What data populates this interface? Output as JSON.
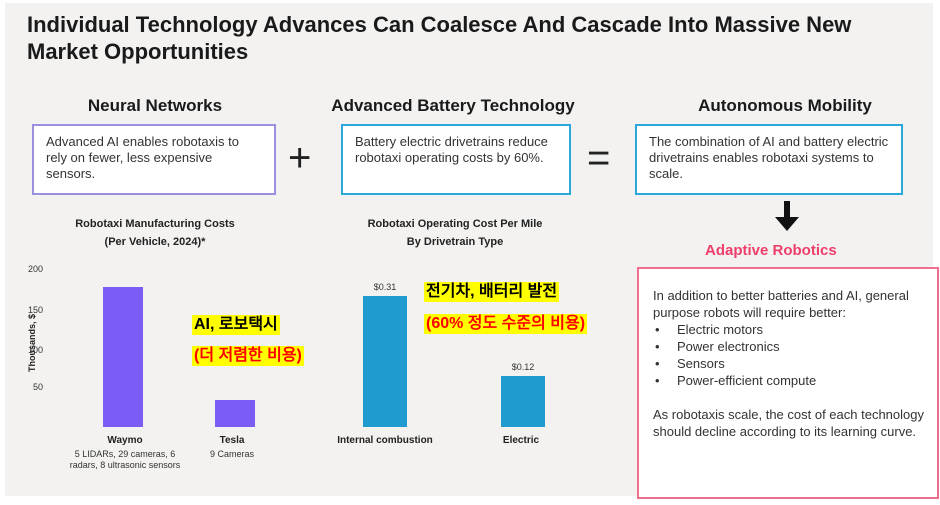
{
  "title": "Individual Technology Advances Can Coalesce And Cascade Into Massive New Market Opportunities",
  "columns": [
    {
      "heading": "Neural Networks",
      "text": "Advanced AI enables robotaxis to rely on fewer, less expensive sensors.",
      "border_color": "#9b8fe0"
    },
    {
      "heading": "Advanced Battery Technology",
      "text": "Battery electric drivetrains reduce robotaxi operating costs by 60%.",
      "border_color": "#2ca8d8"
    },
    {
      "heading": "Autonomous Mobility",
      "text": "The combination of AI and battery electric drivetrains enables robotaxi systems to scale.",
      "border_color": "#2ca8d8"
    }
  ],
  "operators": {
    "plus": "+",
    "equals": "="
  },
  "arrow_icon": "down-arrow-icon",
  "adaptive_robotics": {
    "title": "Adaptive Robotics",
    "intro": "In addition to better batteries and AI, general purpose robots will require better:",
    "items": [
      "Electric motors",
      "Power electronics",
      "Sensors",
      "Power-efficient compute"
    ],
    "outro": "As robotaxis scale, the cost of each technology should decline according to its learning curve."
  },
  "annotations": {
    "chart1_line1": "AI, 로보택시",
    "chart1_line2": "(더 저렴한 비용)",
    "chart2_line1": "전기차, 배터리 발전",
    "chart2_line2": "(60% 정도 수준의 비용)"
  },
  "chart_data": [
    {
      "type": "bar",
      "title": "Robotaxi Manufacturing Costs",
      "subtitle": "(Per Vehicle, 2024)*",
      "ylabel": "Thousands, $",
      "ylim": [
        0,
        200
      ],
      "yticks": [
        "200",
        "150",
        "100",
        "50"
      ],
      "categories": [
        "Waymo",
        "Tesla"
      ],
      "category_notes": [
        "5 LIDARs, 29 cameras, 6 radars, 8 ultrasonic sensors",
        "9 Cameras"
      ],
      "values": [
        180,
        35
      ],
      "color": "#7b5cf5"
    },
    {
      "type": "bar",
      "title": "Robotaxi Operating Cost Per Mile",
      "subtitle": "By Drivetrain Type",
      "categories": [
        "Internal combustion",
        "Electric"
      ],
      "values": [
        0.31,
        0.12
      ],
      "value_labels": [
        "$0.31",
        "$0.12"
      ],
      "color": "#1f9bcf"
    }
  ]
}
